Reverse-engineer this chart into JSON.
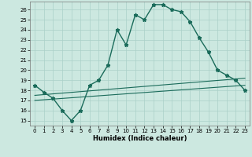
{
  "xlabel": "Humidex (Indice chaleur)",
  "background_color": "#cce8e0",
  "line_color": "#1a6b5a",
  "grid_color": "#aad0c8",
  "xlim": [
    -0.5,
    23.5
  ],
  "ylim": [
    14.5,
    26.8
  ],
  "yticks": [
    15,
    16,
    17,
    18,
    19,
    20,
    21,
    22,
    23,
    24,
    25,
    26
  ],
  "xticks": [
    0,
    1,
    2,
    3,
    4,
    5,
    6,
    7,
    8,
    9,
    10,
    11,
    12,
    13,
    14,
    15,
    16,
    17,
    18,
    19,
    20,
    21,
    22,
    23
  ],
  "main_x": [
    0,
    1,
    2,
    3,
    4,
    5,
    6,
    7,
    8,
    9,
    10,
    11,
    12,
    13,
    14,
    15,
    16,
    17,
    18,
    19,
    20,
    21,
    22,
    23
  ],
  "main_y": [
    18.5,
    17.8,
    17.2,
    16.0,
    15.0,
    16.0,
    18.5,
    19.0,
    20.5,
    24.0,
    22.5,
    25.5,
    25.0,
    26.5,
    26.5,
    26.0,
    25.8,
    24.8,
    23.2,
    21.8,
    20.0,
    19.5,
    19.0,
    18.0
  ],
  "line2_x": [
    0,
    23
  ],
  "line2_y": [
    17.5,
    19.2
  ],
  "line3_x": [
    0,
    23
  ],
  "line3_y": [
    17.0,
    18.5
  ]
}
